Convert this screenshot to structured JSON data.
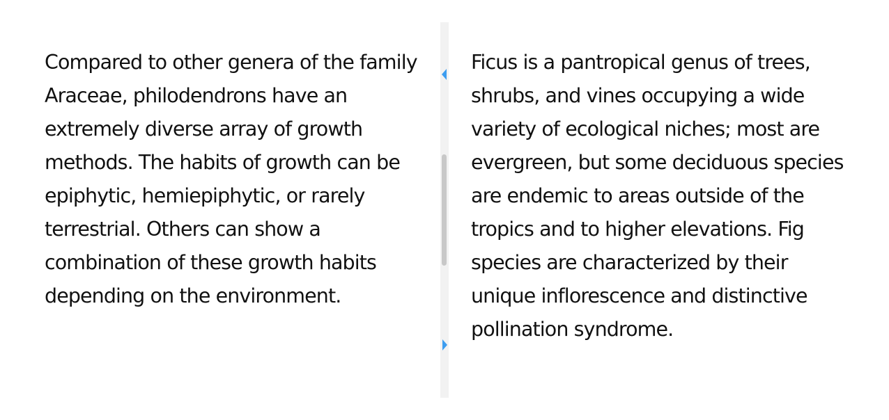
{
  "left_pane": {
    "text": "Compared to other genera of the family Araceae, philodendrons have an extremely diverse array of growth methods. The habits of growth can be epiphytic, hemiepiphytic, or rarely terrestrial. Others can show a combination of these growth habits depending on the environment."
  },
  "right_pane": {
    "text": "Ficus is a pantropical genus of trees, shrubs, and vines occupying a wide variety of ecological niches; most are evergreen, but some deciduous species are endemic to areas outside of the tropics and to higher elevations. Fig species are characterized by their unique inflorescence and distinctive pollination syndrome."
  },
  "splitter": {
    "accent_color": "#3d9df0",
    "collapse_left_icon": "triangle-left-icon",
    "collapse_right_icon": "triangle-right-icon"
  }
}
